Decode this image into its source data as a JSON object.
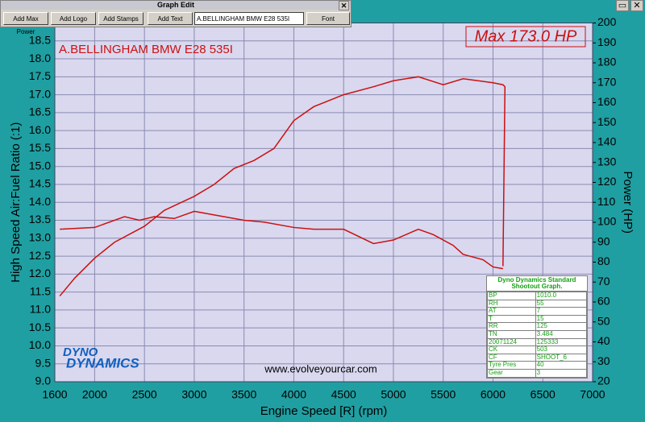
{
  "toolbar": {
    "title": "Graph Edit",
    "buttons": [
      "Add Max Power",
      "Add Logo",
      "Add Stamps",
      "Add Text",
      "Font"
    ],
    "input": "A.BELLINGHAM BMW E28 535I"
  },
  "chart_data": {
    "type": "line",
    "title": "A.BELLINGHAM BMW E28 535I",
    "annotation": "Max 173.0 HP",
    "watermark": "www.evolveyourcar.com",
    "logo": [
      "DYNO",
      "DYNAMICS"
    ],
    "x_label": "Engine Speed [R] (rpm)",
    "y_label": "High Speed Air:Fuel Ratio (:1)",
    "y2_label": "Power (HP)",
    "xlim": [
      1600,
      7000
    ],
    "xticks": [
      1600,
      2000,
      2500,
      3000,
      3500,
      4000,
      4500,
      5000,
      5500,
      6000,
      6500,
      7000
    ],
    "ylim": [
      9,
      19
    ],
    "yticks": [
      {
        "value": 9,
        "label": "9.0"
      },
      {
        "value": 9.5,
        "label": "9.5"
      },
      {
        "value": 10,
        "label": "10.0"
      },
      {
        "value": 10.5,
        "label": "10.5"
      },
      {
        "value": 11,
        "label": "11.0"
      },
      {
        "value": 11.5,
        "label": "11.5"
      },
      {
        "value": 12,
        "label": "12.0"
      },
      {
        "value": 12.5,
        "label": "12.5"
      },
      {
        "value": 13,
        "label": "13.0"
      },
      {
        "value": 13.5,
        "label": "13.5"
      },
      {
        "value": 14,
        "label": "14.0"
      },
      {
        "value": 14.5,
        "label": "14.5"
      },
      {
        "value": 15,
        "label": "15.0"
      },
      {
        "value": 15.5,
        "label": "15.5"
      },
      {
        "value": 16,
        "label": "16.0"
      },
      {
        "value": 16.5,
        "label": "16.5"
      },
      {
        "value": 17,
        "label": "17.0"
      },
      {
        "value": 17.5,
        "label": "17.5"
      },
      {
        "value": 18,
        "label": "18.0"
      },
      {
        "value": 18.5,
        "label": "18.5"
      }
    ],
    "y2lim": [
      20,
      200
    ],
    "y2ticks": [
      20,
      30,
      40,
      50,
      60,
      70,
      80,
      90,
      100,
      110,
      120,
      130,
      140,
      150,
      160,
      170,
      180,
      190,
      200
    ],
    "grid": true,
    "series": [
      {
        "axis": "y",
        "color": "#cc1010",
        "x": [
          1650,
          2000,
          2300,
          2450,
          2600,
          2800,
          3000,
          3200,
          3500,
          3700,
          4000,
          4200,
          4500,
          4800,
          5000,
          5250,
          5400,
          5600,
          5700,
          5900,
          6000,
          6100
        ],
        "values": [
          13.25,
          13.3,
          13.6,
          13.5,
          13.6,
          13.55,
          13.75,
          13.65,
          13.5,
          13.45,
          13.3,
          13.25,
          13.25,
          12.85,
          12.95,
          13.25,
          13.1,
          12.8,
          12.55,
          12.4,
          12.2,
          12.15
        ]
      },
      {
        "axis": "y2",
        "color": "#cc1010",
        "x": [
          1650,
          1800,
          2000,
          2200,
          2500,
          2700,
          3000,
          3200,
          3400,
          3600,
          3800,
          4000,
          4200,
          4500,
          4800,
          5000,
          5250,
          5500,
          5700,
          6000,
          6100,
          6120,
          6100
        ],
        "values": [
          63,
          72,
          82,
          90,
          98,
          106,
          113,
          119,
          127,
          131,
          137,
          151,
          158,
          164,
          168,
          171,
          173,
          169,
          172,
          170,
          169,
          168,
          78
        ]
      }
    ],
    "stamp_table": {
      "title": "Dyno Dynamics Standard Shootout Graph.",
      "rows": [
        [
          "BP",
          "1010.0"
        ],
        [
          "RH",
          "55"
        ],
        [
          "AT",
          "7"
        ],
        [
          "T",
          "15"
        ],
        [
          "RR",
          "125"
        ],
        [
          "TN",
          "3.484"
        ],
        [
          "20071124",
          "125333"
        ],
        [
          "CK",
          "503"
        ],
        [
          "CF",
          "SHOOT_6"
        ],
        [
          "Tyre Pres",
          "40"
        ],
        [
          "Gear",
          "3"
        ]
      ]
    }
  }
}
